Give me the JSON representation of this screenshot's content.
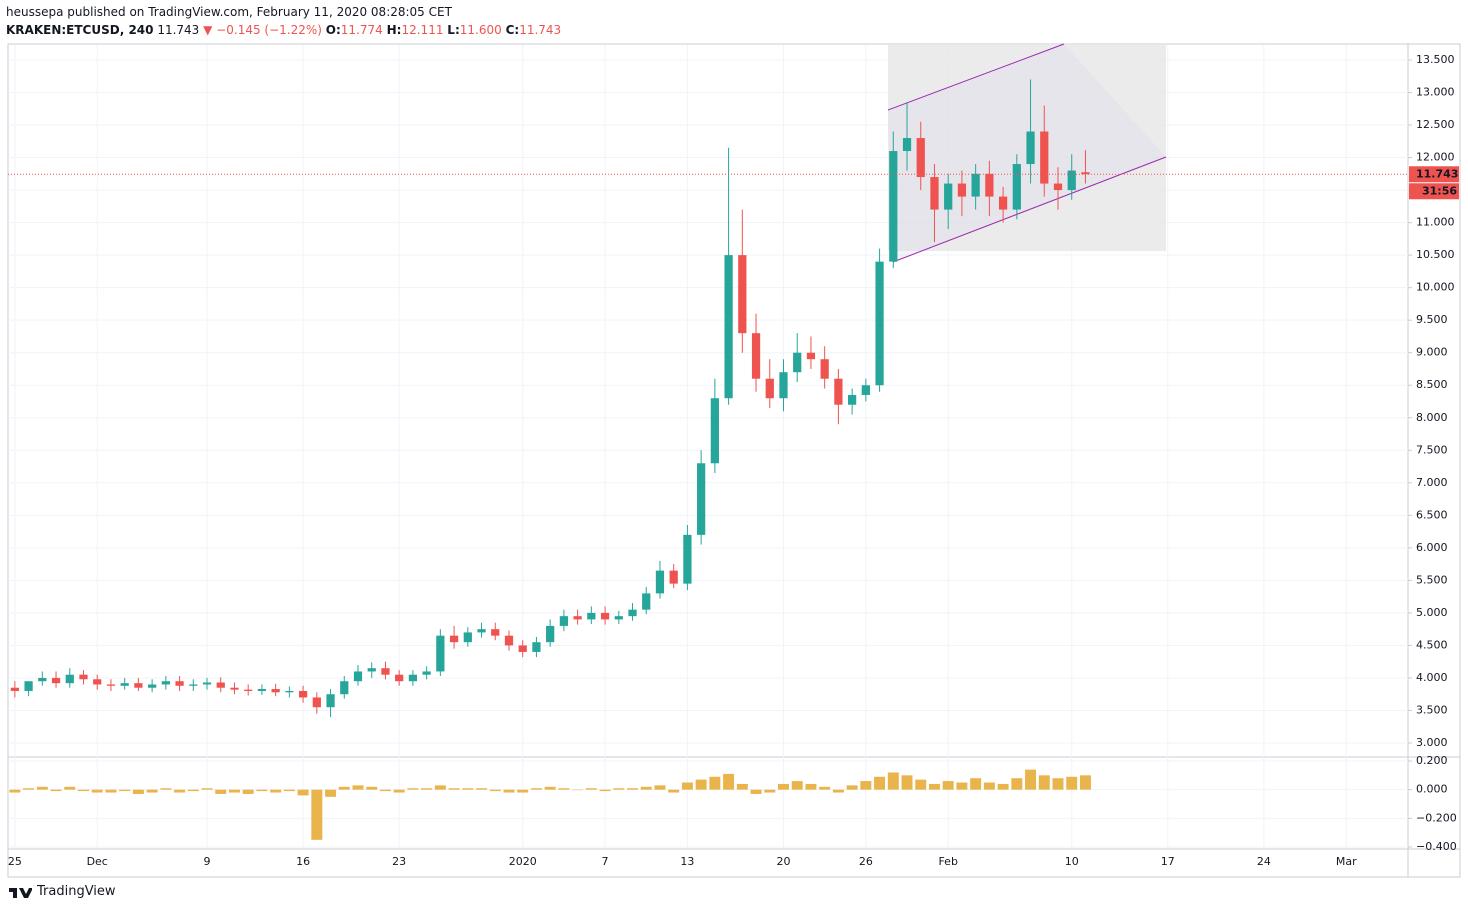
{
  "header": {
    "publisher": "heussepa published on TradingView.com, February 11, 2020 08:28:05 CET",
    "symbol": "KRAKEN:ETCUSD, 240",
    "last": "11.743",
    "change": "▼ −0.145 (−1.22%)",
    "o_label": "O:",
    "o": "11.774",
    "h_label": "H:",
    "h": "12.111",
    "l_label": "L:",
    "l": "11.600",
    "c_label": "C:",
    "c": "11.743"
  },
  "chart_data": [
    {
      "type": "candlestick",
      "categories": [
        "25",
        null,
        null,
        null,
        null,
        null,
        "Dec",
        null,
        null,
        null,
        null,
        null,
        null,
        null,
        "9",
        null,
        null,
        null,
        null,
        null,
        null,
        "16",
        null,
        null,
        null,
        null,
        null,
        null,
        "23",
        null,
        null,
        null,
        null,
        null,
        null,
        null,
        null,
        "2020",
        null,
        null,
        null,
        null,
        null,
        "7",
        null,
        null,
        null,
        null,
        null,
        "13",
        null,
        null,
        null,
        null,
        null,
        null,
        "20",
        null,
        null,
        null,
        null,
        null,
        "26",
        null,
        null,
        null,
        null,
        null,
        "Feb",
        null,
        null,
        null,
        null,
        null,
        null,
        null,
        null,
        "10",
        null,
        null,
        null,
        null,
        null,
        null,
        "17",
        null,
        null,
        null,
        null,
        null,
        null,
        "24",
        null,
        null,
        null,
        null,
        null,
        "Mar",
        null,
        null,
        null,
        null
      ],
      "open": [
        3.85,
        3.8,
        3.95,
        4.0,
        3.92,
        4.05,
        3.98,
        3.9,
        3.88,
        3.92,
        3.85,
        3.9,
        3.95,
        3.88,
        3.9,
        3.93,
        3.85,
        3.82,
        3.8,
        3.83,
        3.78,
        3.8,
        3.7,
        3.55,
        3.75,
        3.95,
        4.1,
        4.15,
        4.05,
        3.95,
        4.05,
        4.1,
        4.65,
        4.55,
        4.7,
        4.75,
        4.65,
        4.5,
        4.4,
        4.55,
        4.8,
        4.95,
        4.9,
        5.0,
        4.9,
        4.95,
        5.05,
        5.3,
        5.65,
        5.45,
        6.2,
        7.3,
        8.3,
        10.5,
        9.3,
        8.6,
        8.3,
        8.7,
        9.0,
        8.9,
        8.6,
        8.2,
        8.35,
        8.5,
        10.4,
        12.1,
        12.3,
        11.7,
        11.2,
        11.6,
        11.4,
        11.75,
        11.4,
        11.2,
        11.9,
        12.4,
        11.6,
        11.5,
        11.774,
        null,
        null,
        null,
        null,
        null,
        null,
        null,
        null,
        null,
        null,
        null,
        null,
        null,
        null,
        null,
        null,
        null,
        null,
        null,
        null,
        null,
        null,
        null
      ],
      "high": [
        3.95,
        3.9,
        4.1,
        4.1,
        4.15,
        4.12,
        4.05,
        3.98,
        4.0,
        4.0,
        3.98,
        4.03,
        4.03,
        3.98,
        4.0,
        4.01,
        3.93,
        3.9,
        3.9,
        3.91,
        3.87,
        3.88,
        3.78,
        3.83,
        4.03,
        4.2,
        4.24,
        4.25,
        4.12,
        4.12,
        4.18,
        4.75,
        4.8,
        4.78,
        4.85,
        4.85,
        4.73,
        4.58,
        4.63,
        4.9,
        5.05,
        5.05,
        5.1,
        5.1,
        5.03,
        5.15,
        5.4,
        5.8,
        5.75,
        6.35,
        7.5,
        8.6,
        12.15,
        11.2,
        9.6,
        8.9,
        8.9,
        9.3,
        9.25,
        9.1,
        8.75,
        8.45,
        8.6,
        10.6,
        12.4,
        12.85,
        12.55,
        11.9,
        11.75,
        11.8,
        11.9,
        11.95,
        11.55,
        12.05,
        13.2,
        12.8,
        11.85,
        12.05,
        12.111,
        null,
        null,
        null,
        null,
        null,
        null,
        null,
        null,
        null,
        null,
        null,
        null,
        null,
        null,
        null,
        null,
        null,
        null,
        null,
        null,
        null,
        null,
        null
      ],
      "low": [
        3.7,
        3.72,
        3.88,
        3.85,
        3.85,
        3.9,
        3.82,
        3.8,
        3.82,
        3.8,
        3.78,
        3.82,
        3.8,
        3.8,
        3.82,
        3.78,
        3.75,
        3.73,
        3.74,
        3.72,
        3.7,
        3.62,
        3.45,
        3.4,
        3.68,
        3.88,
        4.0,
        3.98,
        3.88,
        3.88,
        3.98,
        4.03,
        4.45,
        4.48,
        4.62,
        4.58,
        4.42,
        4.32,
        4.32,
        4.48,
        4.72,
        4.82,
        4.83,
        4.82,
        4.83,
        4.88,
        4.98,
        5.22,
        5.38,
        5.35,
        6.05,
        7.15,
        8.2,
        9.0,
        8.4,
        8.15,
        8.1,
        8.55,
        8.75,
        8.45,
        7.9,
        8.05,
        8.25,
        8.4,
        10.3,
        11.8,
        11.5,
        10.7,
        10.9,
        11.1,
        11.2,
        11.1,
        11.0,
        11.05,
        11.6,
        11.4,
        11.2,
        11.35,
        11.6,
        null,
        null,
        null,
        null,
        null,
        null,
        null,
        null,
        null,
        null,
        null,
        null,
        null,
        null,
        null,
        null,
        null,
        null,
        null,
        null,
        null,
        null,
        null
      ],
      "close": [
        3.8,
        3.95,
        4.0,
        3.92,
        4.05,
        3.98,
        3.9,
        3.88,
        3.92,
        3.85,
        3.9,
        3.95,
        3.88,
        3.9,
        3.93,
        3.85,
        3.82,
        3.8,
        3.83,
        3.78,
        3.8,
        3.7,
        3.55,
        3.75,
        3.95,
        4.1,
        4.15,
        4.05,
        3.95,
        4.05,
        4.1,
        4.65,
        4.55,
        4.7,
        4.75,
        4.65,
        4.5,
        4.4,
        4.55,
        4.8,
        4.95,
        4.9,
        5.0,
        4.9,
        4.95,
        5.05,
        5.3,
        5.65,
        5.45,
        6.2,
        7.3,
        8.3,
        10.5,
        9.3,
        8.6,
        8.3,
        8.7,
        9.0,
        8.9,
        8.6,
        8.2,
        8.35,
        8.5,
        10.4,
        12.1,
        12.3,
        11.7,
        11.2,
        11.6,
        11.4,
        11.75,
        11.4,
        11.2,
        11.9,
        12.4,
        11.6,
        11.5,
        11.8,
        11.743,
        null,
        null,
        null,
        null,
        null,
        null,
        null,
        null,
        null,
        null,
        null,
        null,
        null,
        null,
        null,
        null,
        null,
        null,
        null,
        null,
        null,
        null,
        null
      ],
      "up_color": "#26a69a",
      "down_color": "#ef5350",
      "ylim": [
        2.785,
        13.73
      ],
      "yticks": [
        {
          "value": 3.0,
          "label": "3.000"
        },
        {
          "value": 3.5,
          "label": "3.500"
        },
        {
          "value": 4.0,
          "label": "4.000"
        },
        {
          "value": 4.5,
          "label": "4.500"
        },
        {
          "value": 5.0,
          "label": "5.000"
        },
        {
          "value": 5.5,
          "label": "5.500"
        },
        {
          "value": 6.0,
          "label": "6.000"
        },
        {
          "value": 6.5,
          "label": "6.500"
        },
        {
          "value": 7.0,
          "label": "7.000"
        },
        {
          "value": 7.5,
          "label": "7.500"
        },
        {
          "value": 8.0,
          "label": "8.000"
        },
        {
          "value": 8.5,
          "label": "8.500"
        },
        {
          "value": 9.0,
          "label": "9.000"
        },
        {
          "value": 9.5,
          "label": "9.500"
        },
        {
          "value": 10.0,
          "label": "10.000"
        },
        {
          "value": 10.5,
          "label": "10.500"
        },
        {
          "value": 11.0,
          "label": "11.000"
        },
        {
          "value": 11.5,
          "label": "11.500"
        },
        {
          "value": 12.0,
          "label": "12.000"
        },
        {
          "value": 12.5,
          "label": "12.500"
        },
        {
          "value": 13.0,
          "label": "13.000"
        },
        {
          "value": 13.5,
          "label": "13.500"
        }
      ],
      "grid": true,
      "last_price": {
        "value": 11.743,
        "label": "11.743"
      },
      "countdown": "31:56"
    },
    {
      "type": "bar",
      "values": [
        -0.02,
        0.01,
        0.02,
        -0.01,
        0.02,
        -0.01,
        -0.02,
        -0.02,
        -0.01,
        -0.03,
        -0.02,
        0.01,
        -0.02,
        -0.01,
        0.01,
        -0.03,
        -0.02,
        -0.03,
        -0.01,
        -0.02,
        -0.01,
        -0.04,
        -0.35,
        -0.05,
        0.02,
        0.03,
        0.02,
        -0.01,
        -0.02,
        0.01,
        0.01,
        0.03,
        0.01,
        0.01,
        0.01,
        -0.01,
        -0.02,
        -0.02,
        0.01,
        0.02,
        0.01,
        0.0,
        0.01,
        -0.01,
        0.01,
        0.01,
        0.02,
        0.03,
        -0.02,
        0.05,
        0.07,
        0.09,
        0.11,
        0.04,
        -0.03,
        -0.02,
        0.04,
        0.06,
        0.04,
        0.02,
        -0.02,
        0.03,
        0.06,
        0.09,
        0.12,
        0.1,
        0.07,
        0.04,
        0.06,
        0.05,
        0.08,
        0.05,
        0.04,
        0.08,
        0.14,
        0.1,
        0.08,
        0.09,
        0.1
      ],
      "color": "#e9b44c",
      "ylim": [
        -0.407,
        0.221
      ],
      "yticks": [
        {
          "value": 0.2,
          "label": "0.200"
        },
        {
          "value": 0.0,
          "label": "0.000"
        },
        {
          "value": -0.2,
          "label": "−0.200"
        },
        {
          "value": -0.4,
          "label": "−0.400"
        }
      ]
    }
  ],
  "footer": {
    "brand": "TradingView"
  }
}
